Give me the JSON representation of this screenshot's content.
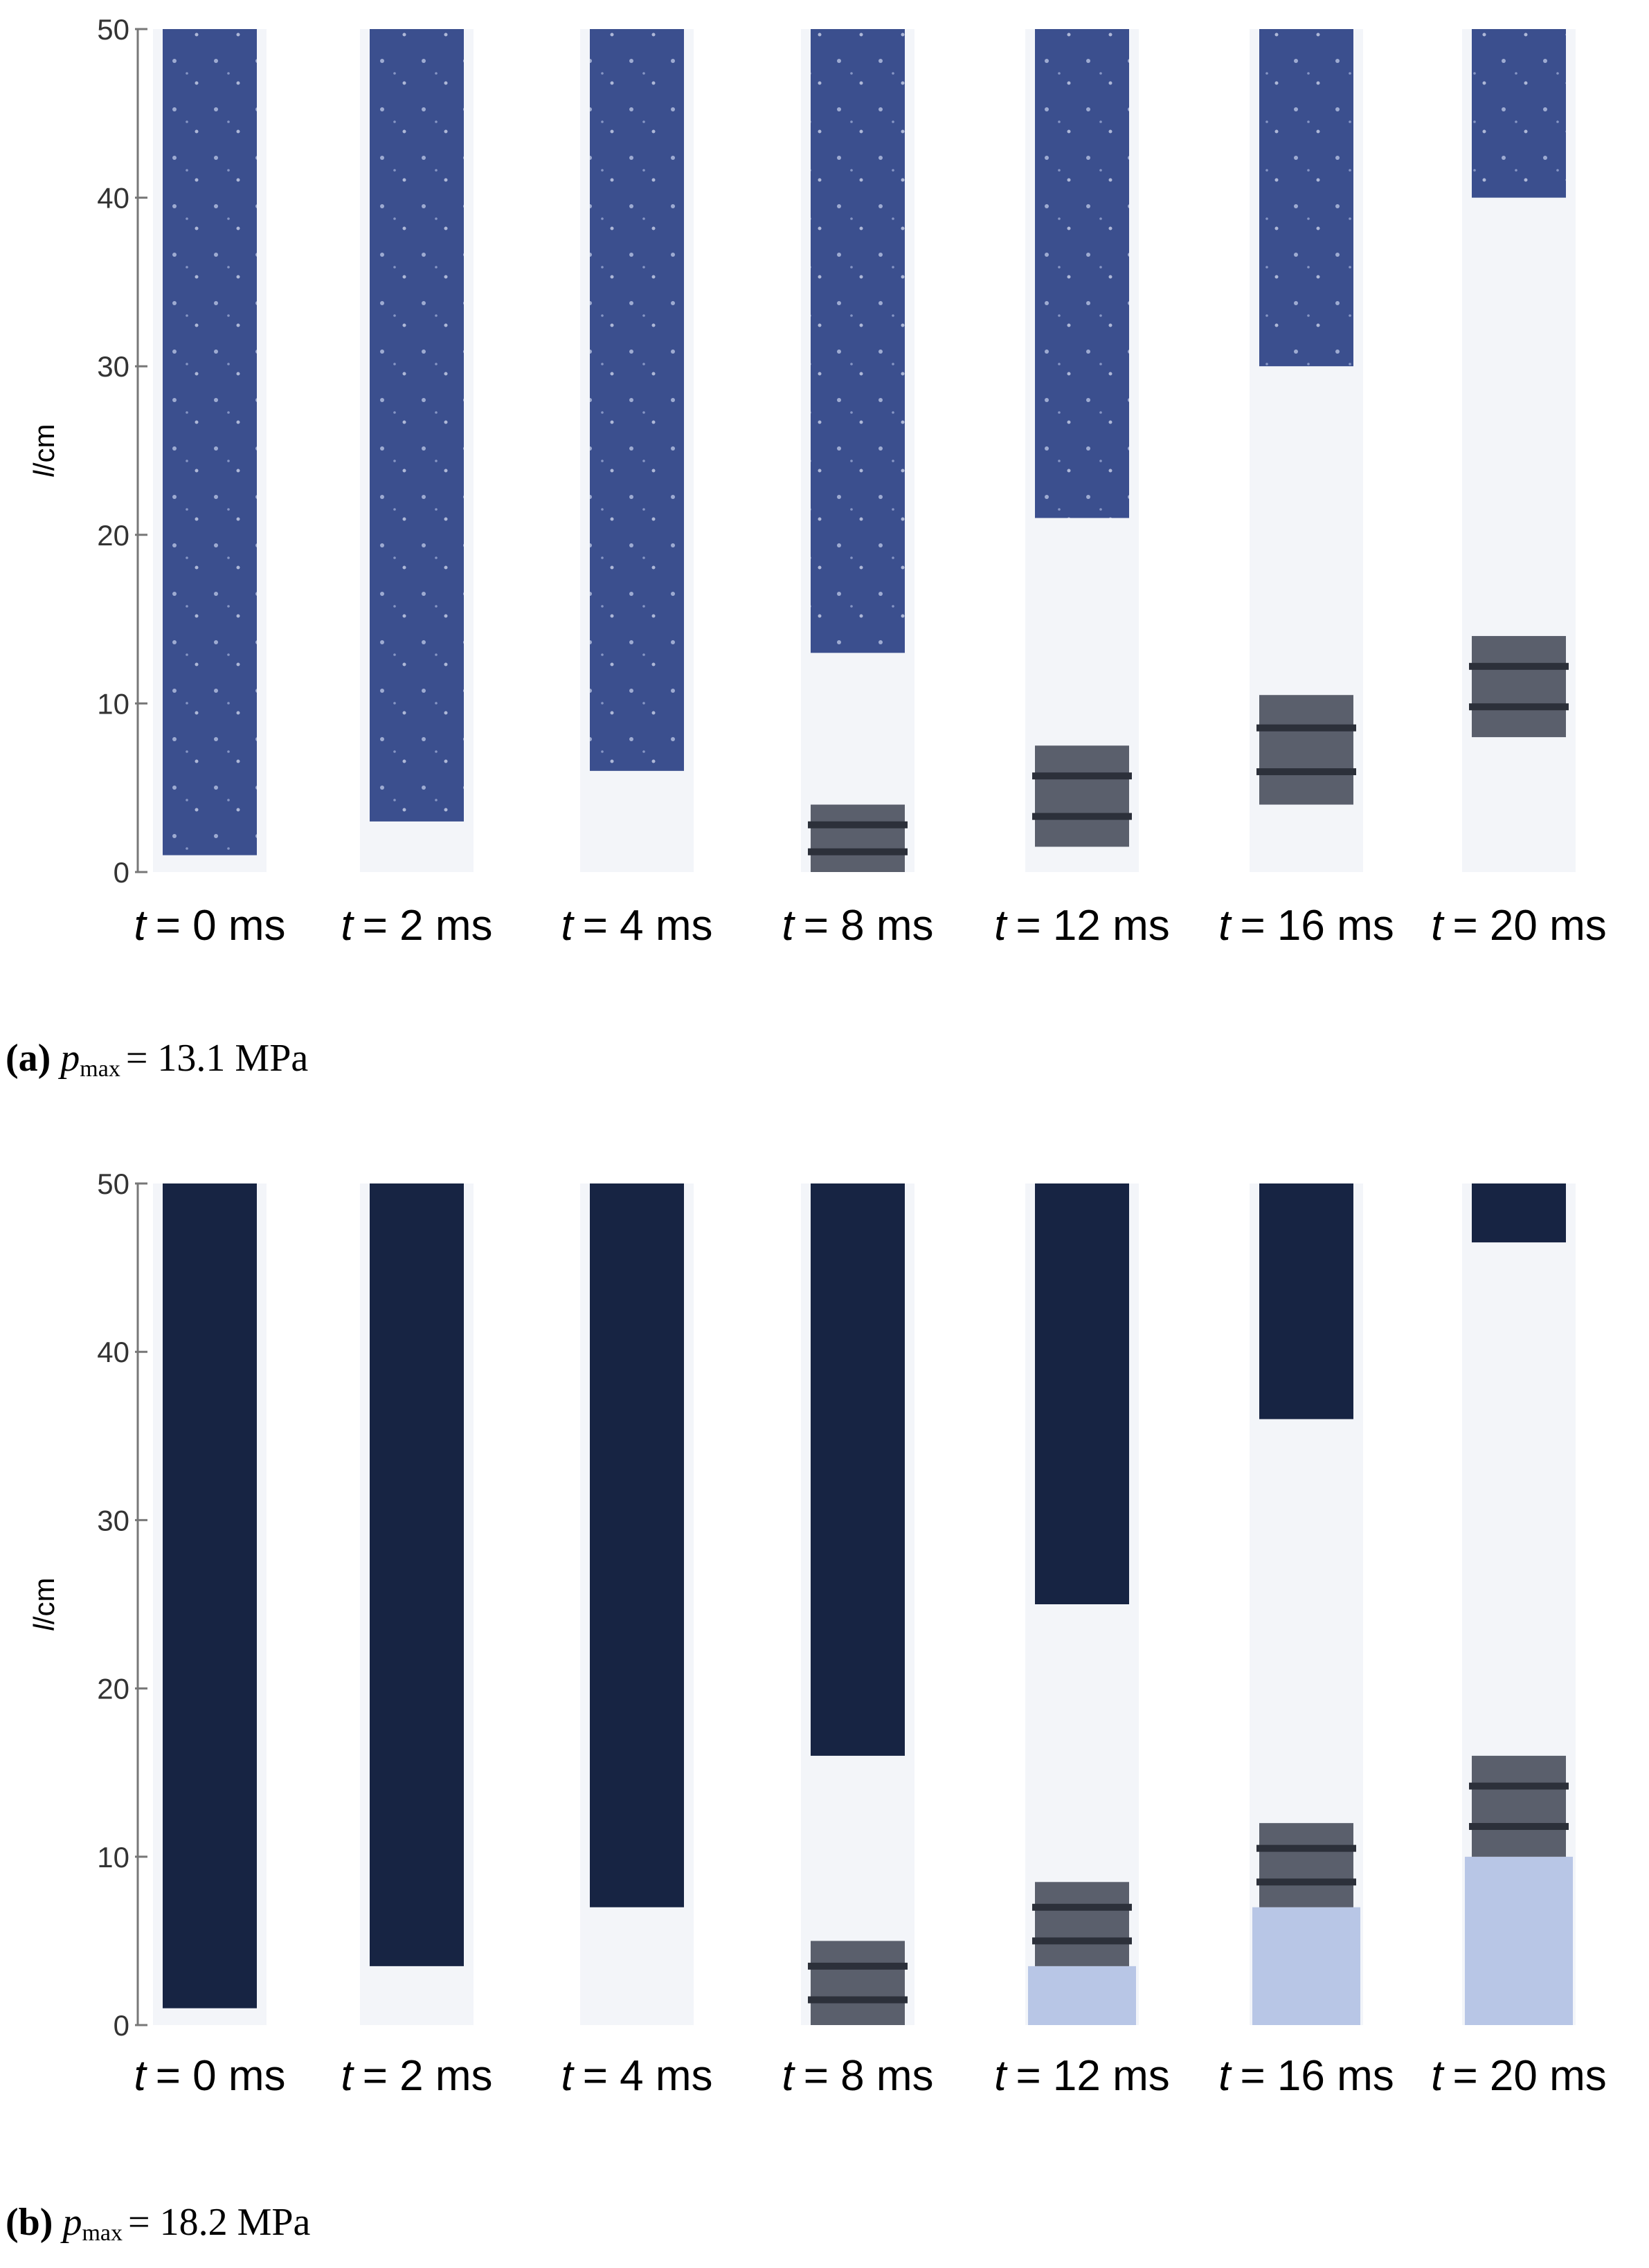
{
  "panels": [
    {
      "ylabel": {
        "var": "l",
        "unit": "/cm"
      },
      "ylim": [
        0,
        50
      ],
      "yticks": [
        0,
        10,
        20,
        30,
        40,
        50
      ],
      "powder_color": "#3b4f8e",
      "frames": [
        {
          "var": "t",
          "text": "= 0 ms",
          "powder": [
            1,
            50
          ]
        },
        {
          "var": "t",
          "text": "= 2 ms",
          "powder": [
            3,
            50
          ]
        },
        {
          "var": "t",
          "text": "= 4 ms",
          "powder": [
            6,
            50
          ]
        },
        {
          "var": "t",
          "text": "= 8 ms",
          "powder": [
            13,
            50
          ],
          "piston": [
            0,
            4
          ]
        },
        {
          "var": "t",
          "text": "= 12 ms",
          "powder": [
            21,
            50
          ],
          "piston": [
            1.5,
            7.5
          ]
        },
        {
          "var": "t",
          "text": "= 16 ms",
          "powder": [
            30,
            50
          ],
          "piston": [
            4,
            10.5
          ]
        },
        {
          "var": "t",
          "text": "= 20 ms",
          "powder": [
            40,
            50
          ],
          "piston": [
            8,
            14
          ]
        }
      ],
      "caption": {
        "label": "(a)",
        "symbol": "p",
        "subscript": "max",
        "text": "= 13.1 MPa"
      }
    },
    {
      "ylabel": {
        "var": "l",
        "unit": "/cm"
      },
      "ylim": [
        0,
        50
      ],
      "yticks": [
        0,
        10,
        20,
        30,
        40,
        50
      ],
      "powder_color": "#172443",
      "frames": [
        {
          "var": "t",
          "text": "= 0 ms",
          "powder": [
            1,
            50
          ]
        },
        {
          "var": "t",
          "text": "= 2 ms",
          "powder": [
            3.5,
            50
          ]
        },
        {
          "var": "t",
          "text": "= 4 ms",
          "powder": [
            7,
            50
          ]
        },
        {
          "var": "t",
          "text": "= 8 ms",
          "powder": [
            16,
            50
          ],
          "piston": [
            0,
            5
          ]
        },
        {
          "var": "t",
          "text": "= 12 ms",
          "powder": [
            25,
            50
          ],
          "piston": [
            3.5,
            8.5
          ]
        },
        {
          "var": "t",
          "text": "= 16 ms",
          "powder": [
            36,
            50
          ],
          "piston": [
            7,
            12
          ]
        },
        {
          "var": "t",
          "text": "= 20 ms",
          "powder": [
            46.5,
            50
          ],
          "piston": [
            10,
            16
          ]
        }
      ],
      "caption": {
        "label": "(b)",
        "symbol": "p",
        "subscript": "max",
        "text": "= 18.2 MPa"
      }
    }
  ]
}
